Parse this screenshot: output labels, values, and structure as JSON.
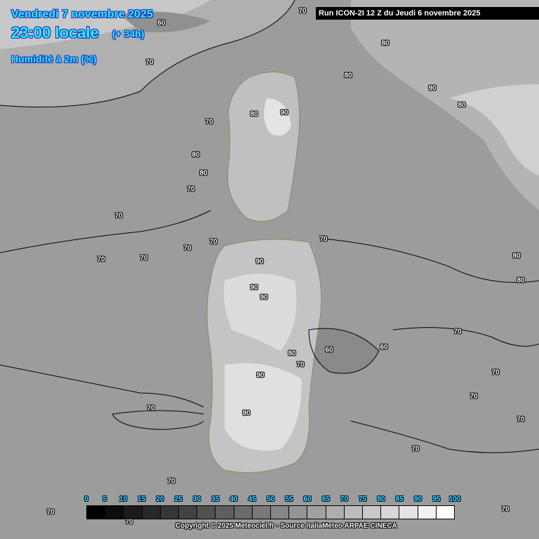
{
  "header": {
    "date": "Vendredi 7 novembre 2025",
    "time": "23:00 locale",
    "lead": "(+ 34h)",
    "variable": "Humidité à 2m (%)",
    "run": "Run ICON-2I 12 Z du Jeudi 6 novembre 2025"
  },
  "legend": {
    "ticks": [
      "0",
      "5",
      "10",
      "15",
      "20",
      "25",
      "30",
      "35",
      "40",
      "45",
      "50",
      "55",
      "60",
      "65",
      "70",
      "75",
      "80",
      "85",
      "90",
      "95",
      "100"
    ],
    "color_min": "#000000",
    "color_max": "#ffffff"
  },
  "contour_labels": [
    "70",
    "60",
    "70",
    "70",
    "80",
    "80",
    "90",
    "80",
    "80",
    "70",
    "80",
    "90",
    "80",
    "70",
    "70",
    "70",
    "70",
    "70",
    "70",
    "90",
    "90",
    "90",
    "80",
    "70",
    "60",
    "60",
    "70",
    "80",
    "80",
    "70",
    "70",
    "90",
    "90",
    "70",
    "70",
    "70",
    "70",
    "70",
    "70",
    "70"
  ],
  "copyright": "Copyright © 2025 Meteociel.fr - Source italiaMeteo ARPAE CINECA"
}
